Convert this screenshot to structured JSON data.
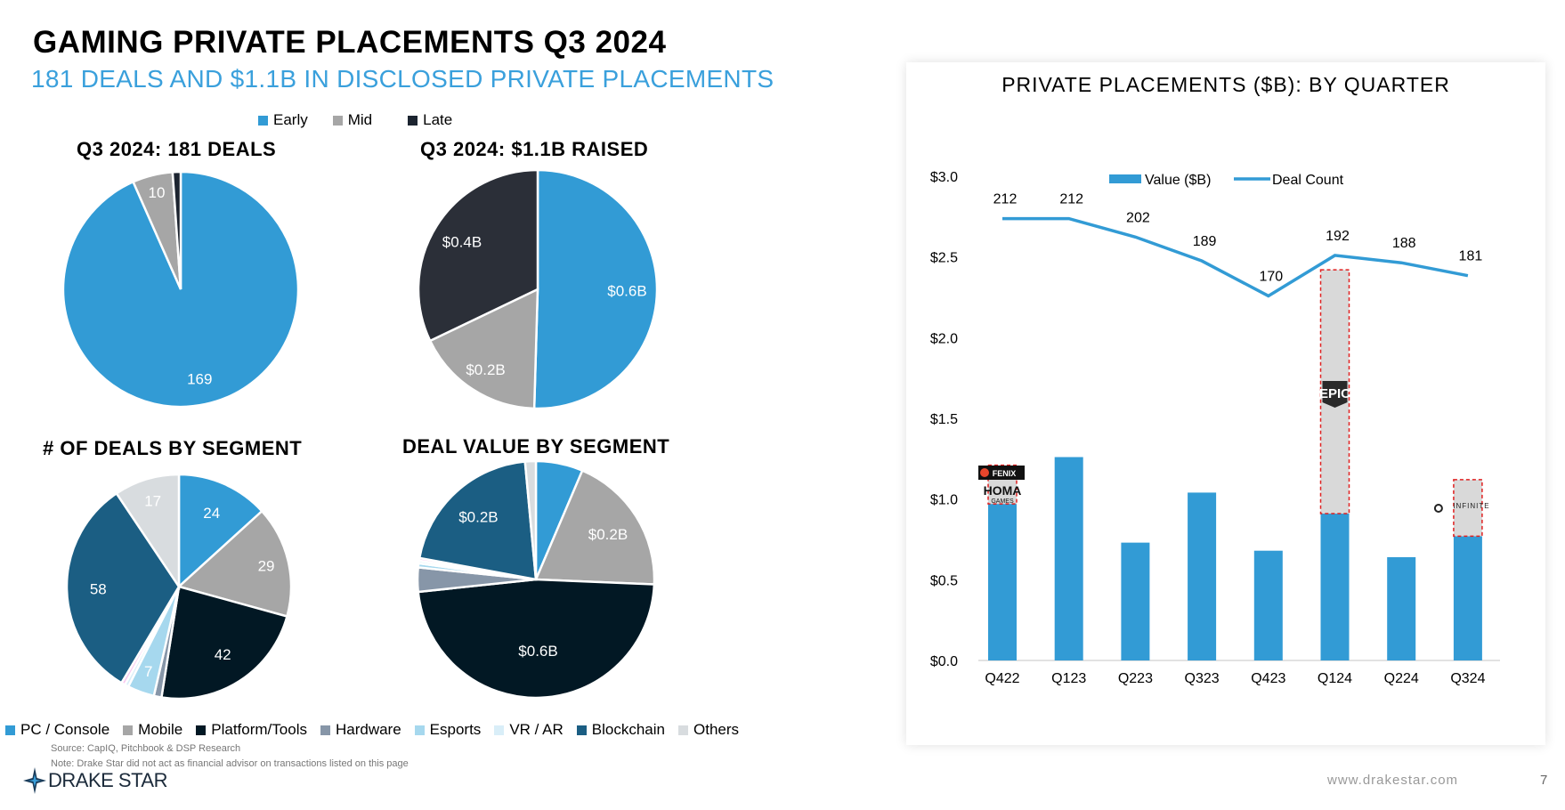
{
  "header": {
    "title": "GAMING PRIVATE PLACEMENTS Q3 2024",
    "subtitle": "181 DEALS AND $1.1B IN DISCLOSED PRIVATE PLACEMENTS"
  },
  "stage_legend": [
    {
      "label": "Early",
      "color": "#329bd5"
    },
    {
      "label": "Mid",
      "color": "#a6a6a6"
    },
    {
      "label": "Late",
      "color": "#1c2430"
    }
  ],
  "segment_legend": [
    {
      "label": "PC / Console",
      "color": "#329bd5"
    },
    {
      "label": "Mobile",
      "color": "#a6a6a6"
    },
    {
      "label": "Platform/Tools",
      "color": "#021824"
    },
    {
      "label": "Hardware",
      "color": "#8796a8"
    },
    {
      "label": "Esports",
      "color": "#a6d8ee"
    },
    {
      "label": "VR / AR",
      "color": "#d9eef8"
    },
    {
      "label": "Blockchain",
      "color": "#1b5e83"
    },
    {
      "label": "Others",
      "color": "#d8dcdf"
    }
  ],
  "footer": {
    "source": "Source: CapIQ, Pitchbook & DSP Research",
    "note": "Note: Drake Star did not act as financial advisor on transactions listed on this page",
    "logo_text": "DRAKE STAR",
    "website": "www.drakestar.com",
    "page_number": "7"
  },
  "chart_data": [
    {
      "type": "pie",
      "title": "Q3 2024: 181 DEALS",
      "slices": [
        {
          "name": "Early",
          "value": 169,
          "label": "169",
          "color": "#329bd5"
        },
        {
          "name": "Mid",
          "value": 10,
          "label": "10",
          "color": "#a6a6a6"
        },
        {
          "name": "Late",
          "value": 2,
          "label": "",
          "color": "#1c2430"
        }
      ]
    },
    {
      "type": "pie",
      "title": "Q3 2024: $1.1B RAISED",
      "slices": [
        {
          "name": "Early",
          "value": 0.55,
          "label": "$0.6B",
          "color": "#329bd5"
        },
        {
          "name": "Mid",
          "value": 0.19,
          "label": "$0.2B",
          "color": "#a6a6a6"
        },
        {
          "name": "Late",
          "value": 0.35,
          "label": "$0.4B",
          "color": "#2b2f38"
        }
      ]
    },
    {
      "type": "pie",
      "title": "# OF DEALS BY SEGMENT",
      "slices": [
        {
          "name": "PC / Console",
          "value": 24,
          "label": "24",
          "color": "#329bd5"
        },
        {
          "name": "Mobile",
          "value": 29,
          "label": "29",
          "color": "#a6a6a6"
        },
        {
          "name": "Platform/Tools",
          "value": 42,
          "label": "42",
          "color": "#021824"
        },
        {
          "name": "Hardware",
          "value": 2,
          "label": "",
          "color": "#8796a8"
        },
        {
          "name": "Esports",
          "value": 7,
          "label": "7",
          "color": "#a6d8ee"
        },
        {
          "name": "VR / AR",
          "value": 1,
          "label": "",
          "color": "#d9eef8"
        },
        {
          "name": "",
          "value": 1,
          "label": "",
          "color": "#f9c8ef"
        },
        {
          "name": "Blockchain",
          "value": 58,
          "label": "58",
          "color": "#1b5e83"
        },
        {
          "name": "Others",
          "value": 17,
          "label": "17",
          "color": "#d8dcdf"
        }
      ]
    },
    {
      "type": "pie",
      "title": "DEAL VALUE BY SEGMENT",
      "slices": [
        {
          "name": "PC / Console",
          "value": 0.07,
          "label": "",
          "color": "#329bd5"
        },
        {
          "name": "Mobile",
          "value": 0.21,
          "label": "$0.2B",
          "color": "#a6a6a6"
        },
        {
          "name": "Platform/Tools",
          "value": 0.52,
          "label": "$0.6B",
          "color": "#021824"
        },
        {
          "name": "Hardware",
          "value": 0.036,
          "label": "",
          "color": "#8796a8"
        },
        {
          "name": "Esports",
          "value": 0.006,
          "label": "",
          "color": "#a6d8ee"
        },
        {
          "name": "VR / AR",
          "value": 0.004,
          "label": "",
          "color": "#d9eef8"
        },
        {
          "name": "",
          "value": 0.004,
          "label": "",
          "color": "#f9c8ef"
        },
        {
          "name": "Blockchain",
          "value": 0.225,
          "label": "$0.2B",
          "color": "#1b5e83"
        },
        {
          "name": "Others",
          "value": 0.016,
          "label": "",
          "color": "#d8dcdf"
        }
      ]
    },
    {
      "type": "bar",
      "title": "PRIVATE PLACEMENTS ($B): BY QUARTER",
      "categories": [
        "Q422",
        "Q123",
        "Q223",
        "Q323",
        "Q423",
        "Q124",
        "Q224",
        "Q324"
      ],
      "ylim": [
        0,
        3.0
      ],
      "yticks": [
        "$0.0",
        "$0.5",
        "$1.0",
        "$1.5",
        "$2.0",
        "$2.5",
        "$3.0"
      ],
      "y2lim": [
        -28,
        235
      ],
      "legend": {
        "position": "top",
        "bar_label": "Value ($B)",
        "line_label": "Deal Count"
      },
      "bar_color": "#329bd5",
      "highlight_color": "#d9d9d9",
      "highlight_border": "#e02020",
      "series": [
        {
          "name": "Value ($B)",
          "type": "bar",
          "values": [
            0.97,
            1.26,
            0.73,
            1.04,
            0.68,
            0.91,
            0.64,
            0.77
          ]
        },
        {
          "name": "Deal Count",
          "type": "line",
          "values": [
            212,
            212,
            202,
            189,
            170,
            192,
            188,
            181
          ]
        }
      ],
      "highlights": [
        {
          "category": "Q422",
          "from": 0.97,
          "to": 1.21,
          "logos": [
            "FENIX GAMES",
            "HOMA GAMES"
          ]
        },
        {
          "category": "Q124",
          "from": 0.91,
          "to": 2.42,
          "logos": [
            "EPIC GAMES"
          ]
        },
        {
          "category": "Q324",
          "from": 0.77,
          "to": 1.12,
          "logos": [
            "INFINITE REALITY"
          ]
        }
      ]
    }
  ]
}
